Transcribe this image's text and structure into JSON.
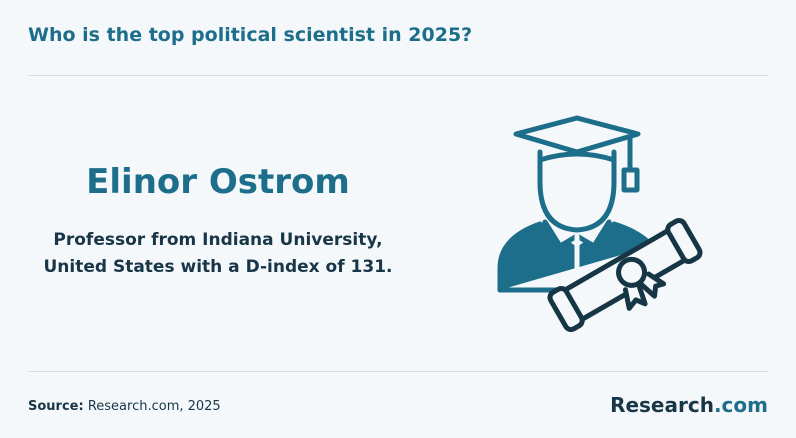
{
  "header": {
    "title": "Who is the top political scientist in 2025?"
  },
  "main": {
    "name": "Elinor Ostrom",
    "description": [
      "Professor from Indiana University,",
      "United States with a D-index of 131."
    ]
  },
  "footer": {
    "source_label": "Source:",
    "source": "Research.com, 2025",
    "logo": {
      "text": "Research",
      "suffix": ".com"
    }
  }
}
